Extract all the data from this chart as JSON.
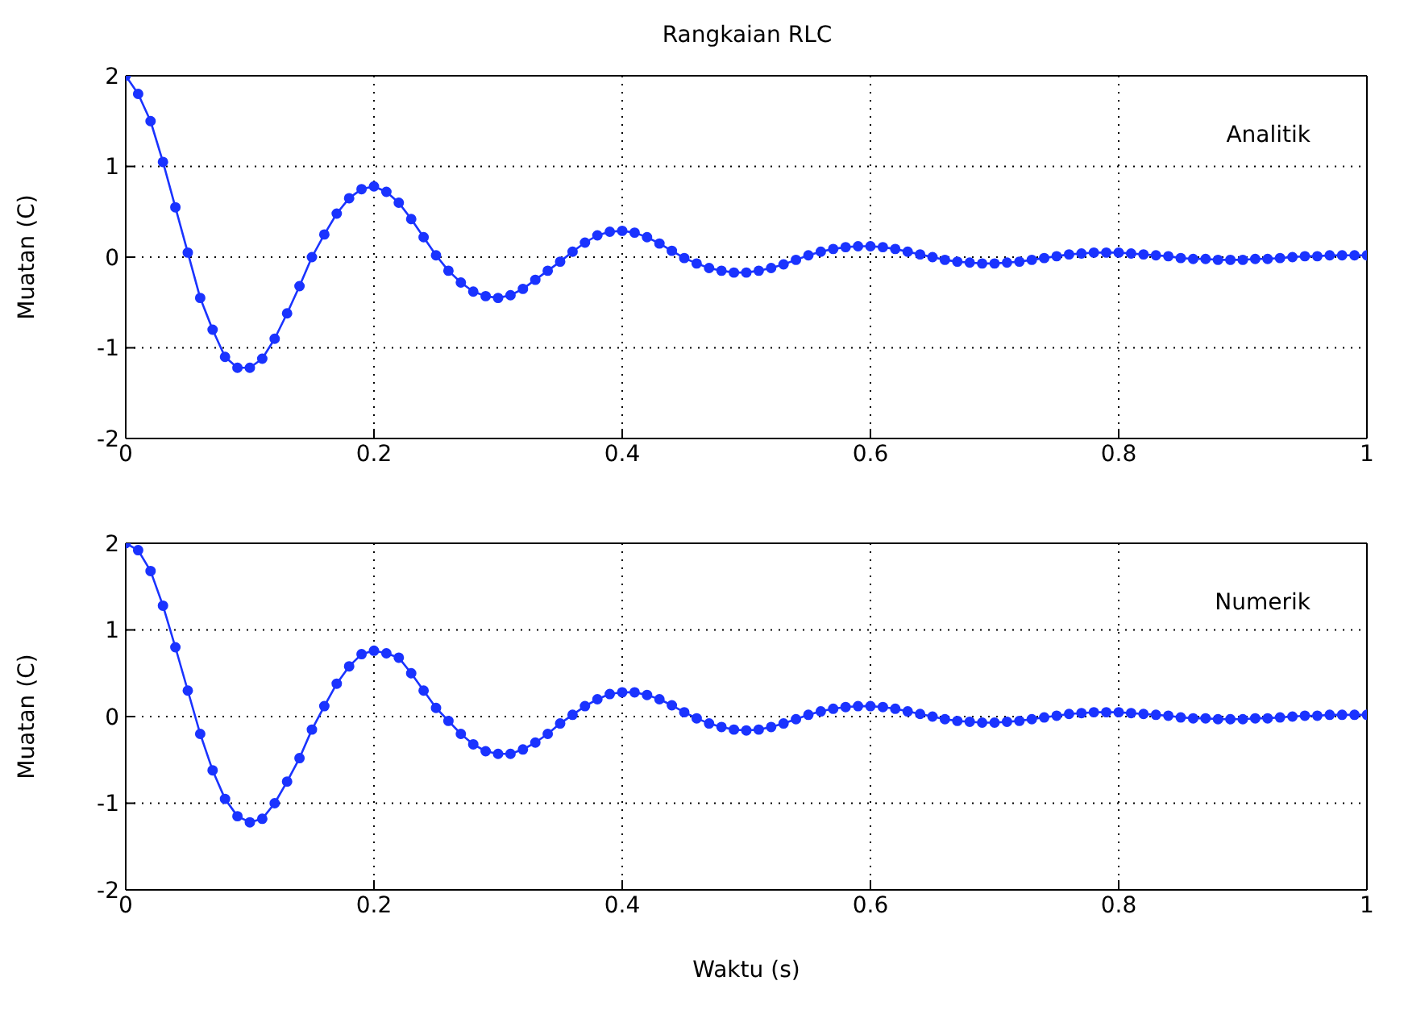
{
  "chart_data": [
    {
      "type": "line",
      "title": "Rangkaian RLC",
      "ylabel": "Muatan (C)",
      "annotations": [
        "Analitik"
      ],
      "grid": true,
      "marker": "circle",
      "line_style": "solid",
      "xlim": [
        0,
        1
      ],
      "xticks": [
        0,
        0.2,
        0.4,
        0.6,
        0.8,
        1
      ],
      "ylim": [
        -2,
        2
      ],
      "yticks": [
        -2,
        -1,
        0,
        1,
        2
      ],
      "x": [
        0,
        0.01,
        0.02,
        0.03,
        0.04,
        0.05,
        0.06,
        0.07,
        0.08,
        0.09,
        0.1,
        0.11,
        0.12,
        0.13,
        0.14,
        0.15,
        0.16,
        0.17,
        0.18,
        0.19,
        0.2,
        0.21,
        0.22,
        0.23,
        0.24,
        0.25,
        0.26,
        0.27,
        0.28,
        0.29,
        0.3,
        0.31,
        0.32,
        0.33,
        0.34,
        0.35,
        0.36,
        0.37,
        0.38,
        0.39,
        0.4,
        0.41,
        0.42,
        0.43,
        0.44,
        0.45,
        0.46,
        0.47,
        0.48,
        0.49,
        0.5,
        0.51,
        0.52,
        0.53,
        0.54,
        0.55,
        0.56,
        0.57,
        0.58,
        0.59,
        0.6,
        0.61,
        0.62,
        0.63,
        0.64,
        0.65,
        0.66,
        0.67,
        0.68,
        0.69,
        0.7,
        0.71,
        0.72,
        0.73,
        0.74,
        0.75,
        0.76,
        0.77,
        0.78,
        0.79,
        0.8,
        0.81,
        0.82,
        0.83,
        0.84,
        0.85,
        0.86,
        0.87,
        0.88,
        0.89,
        0.9,
        0.91,
        0.92,
        0.93,
        0.94,
        0.95,
        0.96,
        0.97,
        0.98,
        0.99,
        1
      ],
      "series": [
        {
          "color": "#1a33ff",
          "values": [
            2,
            1.8,
            1.5,
            1.05,
            0.55,
            0.05,
            -0.45,
            -0.8,
            -1.1,
            -1.22,
            -1.22,
            -1.12,
            -0.9,
            -0.62,
            -0.32,
            0,
            0.25,
            0.48,
            0.65,
            0.75,
            0.78,
            0.72,
            0.6,
            0.42,
            0.22,
            0.02,
            -0.15,
            -0.28,
            -0.38,
            -0.43,
            -0.45,
            -0.42,
            -0.35,
            -0.25,
            -0.15,
            -0.05,
            0.06,
            0.16,
            0.24,
            0.28,
            0.29,
            0.27,
            0.22,
            0.15,
            0.07,
            -0.01,
            -0.07,
            -0.12,
            -0.15,
            -0.17,
            -0.17,
            -0.15,
            -0.12,
            -0.08,
            -0.03,
            0.02,
            0.06,
            0.09,
            0.11,
            0.12,
            0.12,
            0.11,
            0.09,
            0.06,
            0.03,
            0,
            -0.03,
            -0.05,
            -0.06,
            -0.07,
            -0.07,
            -0.06,
            -0.05,
            -0.03,
            -0.01,
            0.01,
            0.03,
            0.04,
            0.05,
            0.05,
            0.05,
            0.04,
            0.03,
            0.02,
            0.01,
            -0.01,
            -0.02,
            -0.02,
            -0.03,
            -0.03,
            -0.03,
            -0.02,
            -0.02,
            -0.01,
            0,
            0.01,
            0.01,
            0.02,
            0.02,
            0.02,
            0.02
          ]
        }
      ]
    },
    {
      "type": "line",
      "xlabel": "Waktu (s)",
      "ylabel": "Muatan (C)",
      "annotations": [
        "Numerik"
      ],
      "grid": true,
      "marker": "circle",
      "line_style": "solid",
      "xlim": [
        0,
        1
      ],
      "xticks": [
        0,
        0.2,
        0.4,
        0.6,
        0.8,
        1
      ],
      "ylim": [
        -2,
        2
      ],
      "yticks": [
        -2,
        -1,
        0,
        1,
        2
      ],
      "x": [
        0,
        0.01,
        0.02,
        0.03,
        0.04,
        0.05,
        0.06,
        0.07,
        0.08,
        0.09,
        0.1,
        0.11,
        0.12,
        0.13,
        0.14,
        0.15,
        0.16,
        0.17,
        0.18,
        0.19,
        0.2,
        0.21,
        0.22,
        0.23,
        0.24,
        0.25,
        0.26,
        0.27,
        0.28,
        0.29,
        0.3,
        0.31,
        0.32,
        0.33,
        0.34,
        0.35,
        0.36,
        0.37,
        0.38,
        0.39,
        0.4,
        0.41,
        0.42,
        0.43,
        0.44,
        0.45,
        0.46,
        0.47,
        0.48,
        0.49,
        0.5,
        0.51,
        0.52,
        0.53,
        0.54,
        0.55,
        0.56,
        0.57,
        0.58,
        0.59,
        0.6,
        0.61,
        0.62,
        0.63,
        0.64,
        0.65,
        0.66,
        0.67,
        0.68,
        0.69,
        0.7,
        0.71,
        0.72,
        0.73,
        0.74,
        0.75,
        0.76,
        0.77,
        0.78,
        0.79,
        0.8,
        0.81,
        0.82,
        0.83,
        0.84,
        0.85,
        0.86,
        0.87,
        0.88,
        0.89,
        0.9,
        0.91,
        0.92,
        0.93,
        0.94,
        0.95,
        0.96,
        0.97,
        0.98,
        0.99,
        1
      ],
      "series": [
        {
          "color": "#1a33ff",
          "values": [
            2,
            1.92,
            1.68,
            1.28,
            0.8,
            0.3,
            -0.2,
            -0.62,
            -0.95,
            -1.15,
            -1.22,
            -1.18,
            -1,
            -0.75,
            -0.48,
            -0.15,
            0.12,
            0.38,
            0.58,
            0.72,
            0.76,
            0.73,
            0.68,
            0.5,
            0.3,
            0.1,
            -0.05,
            -0.2,
            -0.32,
            -0.4,
            -0.43,
            -0.43,
            -0.38,
            -0.3,
            -0.2,
            -0.08,
            0.02,
            0.12,
            0.2,
            0.26,
            0.28,
            0.28,
            0.25,
            0.2,
            0.13,
            0.05,
            -0.02,
            -0.08,
            -0.12,
            -0.15,
            -0.16,
            -0.15,
            -0.12,
            -0.08,
            -0.03,
            0.02,
            0.06,
            0.09,
            0.11,
            0.12,
            0.12,
            0.11,
            0.09,
            0.06,
            0.03,
            0,
            -0.03,
            -0.05,
            -0.06,
            -0.07,
            -0.07,
            -0.06,
            -0.05,
            -0.03,
            -0.01,
            0.01,
            0.03,
            0.04,
            0.05,
            0.05,
            0.05,
            0.04,
            0.03,
            0.02,
            0.01,
            -0.01,
            -0.02,
            -0.02,
            -0.03,
            -0.03,
            -0.03,
            -0.02,
            -0.02,
            -0.01,
            0,
            0.01,
            0.01,
            0.02,
            0.02,
            0.02,
            0.02
          ]
        }
      ]
    }
  ]
}
